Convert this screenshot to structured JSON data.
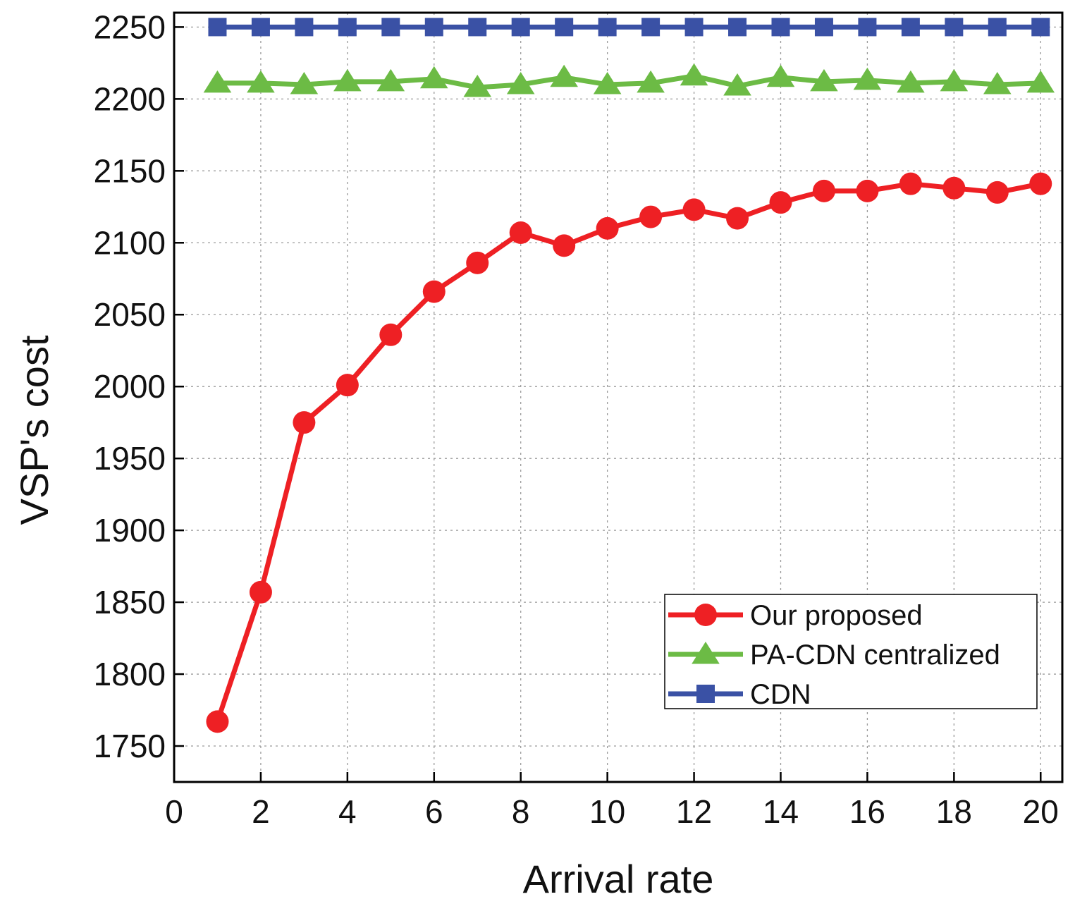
{
  "chart_data": {
    "type": "line",
    "title": "",
    "xlabel": "Arrival rate",
    "ylabel": "VSP's cost",
    "xlim": [
      0,
      20.5
    ],
    "ylim": [
      1725,
      2260
    ],
    "xticks": [
      0,
      2,
      4,
      6,
      8,
      10,
      12,
      14,
      16,
      18,
      20
    ],
    "yticks": [
      1750,
      1800,
      1850,
      1900,
      1950,
      2000,
      2050,
      2100,
      2150,
      2200,
      2250
    ],
    "grid": true,
    "legend_position": "bottom-right",
    "x": [
      1,
      2,
      3,
      4,
      5,
      6,
      7,
      8,
      9,
      10,
      11,
      12,
      13,
      14,
      15,
      16,
      17,
      18,
      19,
      20
    ],
    "series": [
      {
        "name": "Our proposed",
        "color": "#ee2024",
        "marker": "circle",
        "values": [
          1767,
          1857,
          1975,
          2001,
          2036,
          2066,
          2086,
          2107,
          2098,
          2110,
          2118,
          2123,
          2117,
          2128,
          2136,
          2136,
          2141,
          2138,
          2135,
          2141
        ]
      },
      {
        "name": "PA-CDN centralized",
        "color": "#6cbb45",
        "marker": "triangle",
        "values": [
          2211,
          2211,
          2210,
          2212,
          2212,
          2214,
          2208,
          2210,
          2215,
          2210,
          2211,
          2216,
          2209,
          2215,
          2212,
          2213,
          2211,
          2212,
          2210,
          2211
        ]
      },
      {
        "name": "CDN",
        "color": "#3a51a5",
        "marker": "square",
        "values": [
          2250,
          2250,
          2250,
          2250,
          2250,
          2250,
          2250,
          2250,
          2250,
          2250,
          2250,
          2250,
          2250,
          2250,
          2250,
          2250,
          2250,
          2250,
          2250,
          2250
        ]
      }
    ]
  }
}
